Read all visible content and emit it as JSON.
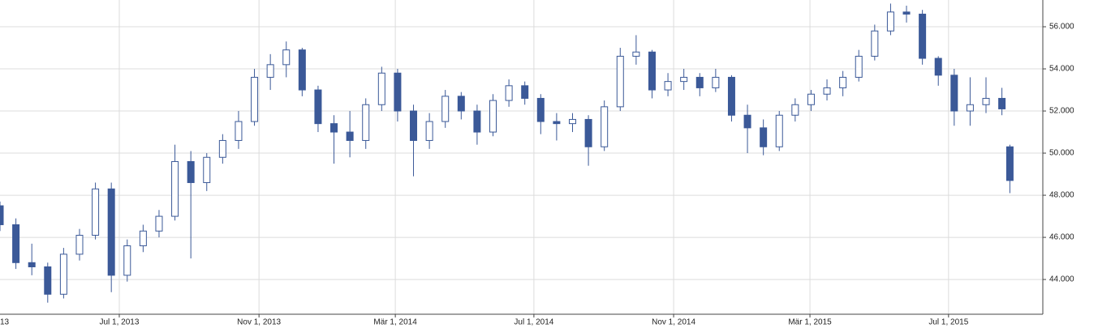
{
  "chart_data": {
    "type": "candlestick",
    "color": "#3b5998",
    "grid": true,
    "xlim": [
      "2013-03-18",
      "2015-09-22"
    ],
    "ylim": [
      42.35,
      57.27
    ],
    "yticks": [
      {
        "value": 44,
        "label": "44.000"
      },
      {
        "value": 46,
        "label": "46.000"
      },
      {
        "value": 48,
        "label": "48.000"
      },
      {
        "value": 50,
        "label": "50.000"
      },
      {
        "value": 52,
        "label": "52.000"
      },
      {
        "value": 54,
        "label": "54.000"
      },
      {
        "value": 56,
        "label": "56.000"
      }
    ],
    "xticks": [
      {
        "value": "2013-03-01",
        "label": "13"
      },
      {
        "value": "2013-07-01",
        "label": "Jul 1, 2013"
      },
      {
        "value": "2013-11-01",
        "label": "Nov 1, 2013"
      },
      {
        "value": "2014-03-01",
        "label": "Mär 1, 2014"
      },
      {
        "value": "2014-07-01",
        "label": "Jul 1, 2014"
      },
      {
        "value": "2014-11-01",
        "label": "Nov 1, 2014"
      },
      {
        "value": "2015-03-01",
        "label": "Mär 1, 2015"
      },
      {
        "value": "2015-07-01",
        "label": "Jul 1, 2015"
      }
    ],
    "x": [
      "2013-03-18",
      "2013-04-01",
      "2013-04-15",
      "2013-04-29",
      "2013-05-13",
      "2013-05-27",
      "2013-06-10",
      "2013-06-24",
      "2013-07-08",
      "2013-07-22",
      "2013-08-05",
      "2013-08-19",
      "2013-09-02",
      "2013-09-16",
      "2013-09-30",
      "2013-10-14",
      "2013-10-28",
      "2013-11-11",
      "2013-11-25",
      "2013-12-09",
      "2013-12-23",
      "2014-01-06",
      "2014-01-20",
      "2014-02-03",
      "2014-02-17",
      "2014-03-03",
      "2014-03-17",
      "2014-03-31",
      "2014-04-14",
      "2014-04-28",
      "2014-05-12",
      "2014-05-26",
      "2014-06-09",
      "2014-06-23",
      "2014-07-07",
      "2014-07-21",
      "2014-08-04",
      "2014-08-18",
      "2014-09-01",
      "2014-09-15",
      "2014-09-29",
      "2014-10-13",
      "2014-10-27",
      "2014-11-10",
      "2014-11-24",
      "2014-12-08",
      "2014-12-22",
      "2015-01-05",
      "2015-01-19",
      "2015-02-02",
      "2015-02-16",
      "2015-03-02",
      "2015-03-16",
      "2015-03-30",
      "2015-04-13",
      "2015-04-27",
      "2015-05-11",
      "2015-05-25",
      "2015-06-08",
      "2015-06-22",
      "2015-07-06",
      "2015-07-20",
      "2015-08-03",
      "2015-08-17",
      "2015-08-24"
    ],
    "open": [
      47.5,
      46.6,
      44.8,
      44.6,
      43.3,
      45.2,
      46.1,
      48.3,
      44.2,
      45.6,
      46.3,
      47.0,
      49.6,
      48.6,
      49.8,
      50.6,
      51.5,
      53.6,
      54.2,
      54.9,
      53.0,
      51.4,
      51.0,
      50.6,
      52.3,
      53.8,
      52.0,
      50.6,
      51.5,
      52.7,
      52.0,
      51.0,
      52.5,
      53.2,
      52.6,
      51.5,
      51.4,
      51.6,
      50.3,
      52.2,
      54.6,
      54.8,
      53.0,
      53.4,
      53.6,
      53.1,
      53.6,
      51.8,
      51.2,
      50.3,
      51.8,
      52.3,
      52.8,
      53.1,
      53.6,
      54.6,
      55.8,
      56.7,
      56.6,
      54.5,
      53.7,
      52.0,
      52.3,
      52.6,
      50.3
    ],
    "high": [
      47.7,
      46.9,
      45.7,
      44.8,
      45.5,
      46.4,
      48.6,
      48.6,
      45.9,
      46.6,
      47.3,
      50.4,
      50.1,
      50.0,
      50.9,
      52.0,
      54.0,
      54.7,
      55.3,
      55.0,
      53.2,
      51.8,
      52.0,
      52.6,
      54.1,
      54.0,
      52.3,
      51.9,
      53.0,
      52.9,
      52.3,
      52.8,
      53.5,
      53.4,
      52.8,
      51.9,
      51.9,
      51.8,
      52.5,
      55.0,
      55.6,
      54.9,
      53.8,
      54.0,
      53.8,
      54.0,
      53.7,
      52.3,
      51.6,
      52.0,
      52.6,
      53.0,
      53.5,
      53.9,
      54.9,
      56.1,
      57.1,
      57.0,
      56.8,
      54.6,
      54.0,
      53.6,
      53.6,
      53.1,
      50.4
    ],
    "low": [
      46.3,
      44.5,
      44.2,
      42.9,
      43.1,
      44.9,
      45.9,
      43.4,
      43.9,
      45.3,
      46.0,
      46.8,
      45.0,
      48.2,
      49.5,
      50.2,
      51.3,
      53.0,
      53.6,
      52.7,
      51.0,
      49.5,
      49.8,
      50.2,
      52.0,
      51.5,
      48.9,
      50.2,
      51.2,
      51.6,
      50.4,
      50.8,
      52.2,
      52.3,
      50.9,
      50.6,
      51.0,
      49.4,
      50.1,
      52.0,
      54.2,
      52.6,
      52.7,
      53.0,
      52.7,
      52.9,
      51.5,
      50.0,
      49.9,
      50.1,
      51.5,
      52.0,
      52.5,
      52.7,
      53.4,
      54.4,
      55.6,
      56.2,
      54.2,
      53.2,
      51.3,
      51.3,
      51.9,
      51.8,
      48.1
    ],
    "close": [
      46.6,
      44.8,
      44.6,
      43.3,
      45.2,
      46.1,
      48.3,
      44.2,
      45.6,
      46.3,
      47.0,
      49.6,
      48.6,
      49.8,
      50.6,
      51.5,
      53.6,
      54.2,
      54.9,
      53.0,
      51.4,
      51.0,
      50.6,
      52.3,
      53.8,
      52.0,
      50.6,
      51.5,
      52.7,
      52.0,
      51.0,
      52.5,
      53.2,
      52.6,
      51.5,
      51.4,
      51.6,
      50.3,
      52.2,
      54.6,
      54.8,
      53.0,
      53.4,
      53.6,
      53.1,
      53.6,
      51.8,
      51.2,
      50.3,
      51.8,
      52.3,
      52.8,
      53.1,
      53.6,
      54.6,
      55.8,
      56.7,
      56.6,
      54.5,
      53.7,
      52.0,
      52.3,
      52.6,
      52.1,
      48.7
    ]
  }
}
